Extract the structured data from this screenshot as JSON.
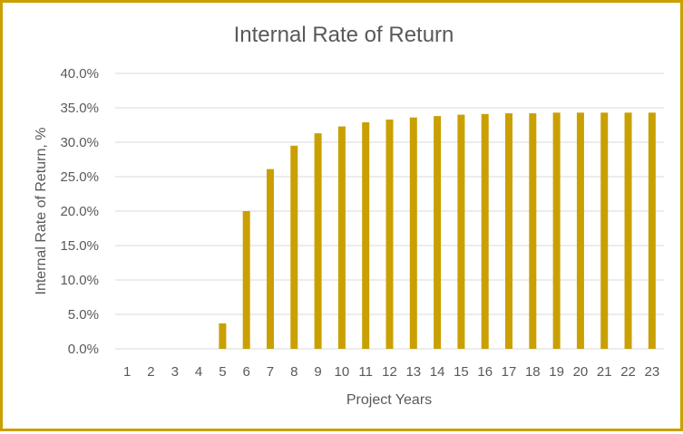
{
  "chart_data": {
    "type": "bar",
    "title": "Internal Rate of Return",
    "xlabel": "Project Years",
    "ylabel": "Internal Rate of Return, %",
    "categories": [
      "1",
      "2",
      "3",
      "4",
      "5",
      "6",
      "7",
      "8",
      "9",
      "10",
      "11",
      "12",
      "13",
      "14",
      "15",
      "16",
      "17",
      "18",
      "19",
      "20",
      "21",
      "22",
      "23"
    ],
    "values": [
      0,
      0,
      0,
      0,
      3.7,
      20.0,
      26.1,
      29.5,
      31.3,
      32.3,
      32.9,
      33.3,
      33.6,
      33.8,
      34.0,
      34.1,
      34.2,
      34.2,
      34.3,
      34.3,
      34.3,
      34.3,
      34.3
    ],
    "yticks": [
      "0.0%",
      "5.0%",
      "10.0%",
      "15.0%",
      "20.0%",
      "25.0%",
      "30.0%",
      "35.0%",
      "40.0%"
    ],
    "ylim": [
      0,
      40
    ],
    "grid": true,
    "bar_color": "#c9a000",
    "border_color": "#c9a000"
  }
}
